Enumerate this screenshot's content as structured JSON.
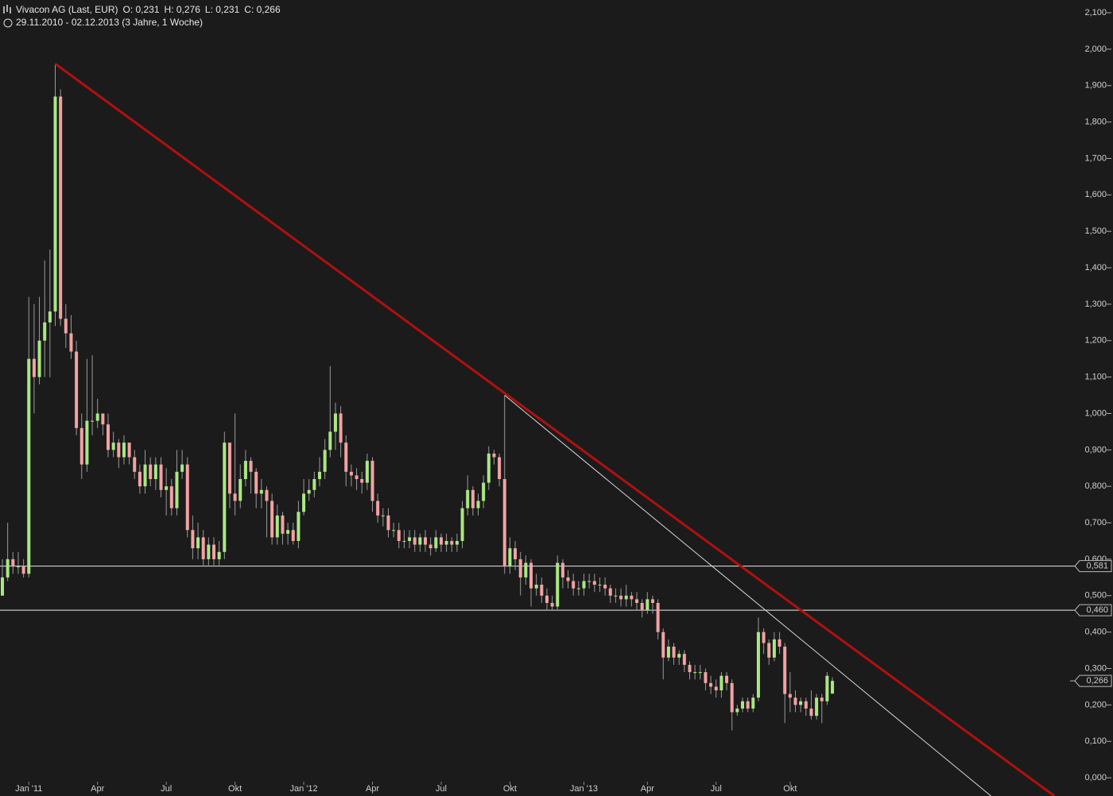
{
  "header": {
    "instrument": "Vivacon AG (Last, EUR)",
    "open": "O: 0,231",
    "high": "H: 0,276",
    "low": "L: 0,231",
    "close": "C: 0,266",
    "period": "29.11.2010 - 02.12.2013 (3 Jahre, 1 Woche)"
  },
  "chart_data": {
    "type": "candlestick",
    "up_color": "#a8e882",
    "down_color": "#f2a2a2",
    "categories": [
      null,
      null,
      null,
      null,
      null,
      "Jan '11",
      null,
      null,
      null,
      null,
      null,
      null,
      null,
      null,
      null,
      null,
      null,
      null,
      "Apr",
      null,
      null,
      null,
      null,
      null,
      null,
      null,
      null,
      null,
      null,
      null,
      null,
      "Jul",
      null,
      null,
      null,
      null,
      null,
      null,
      null,
      null,
      null,
      null,
      null,
      null,
      "Okt",
      null,
      null,
      null,
      null,
      null,
      null,
      null,
      null,
      null,
      null,
      null,
      null,
      "Jan '12",
      null,
      null,
      null,
      null,
      null,
      null,
      null,
      null,
      null,
      null,
      null,
      null,
      "Apr",
      null,
      null,
      null,
      null,
      null,
      null,
      null,
      null,
      null,
      null,
      null,
      null,
      "Jul",
      null,
      null,
      null,
      null,
      null,
      null,
      null,
      null,
      null,
      null,
      null,
      null,
      "Okt",
      null,
      null,
      null,
      null,
      null,
      null,
      null,
      null,
      null,
      null,
      null,
      null,
      null,
      "Jan '13",
      null,
      null,
      null,
      null,
      null,
      null,
      null,
      null,
      null,
      null,
      null,
      "Apr",
      null,
      null,
      null,
      null,
      null,
      null,
      null,
      null,
      null,
      null,
      null,
      null,
      "Jul",
      null,
      null,
      null,
      null,
      null,
      null,
      null,
      null,
      null,
      null,
      null,
      null,
      null,
      "Okt",
      null,
      null,
      null,
      null,
      null,
      null,
      null,
      null
    ],
    "open": [
      0.5,
      0.55,
      0.6,
      0.58,
      0.58,
      0.56,
      1.15,
      1.1,
      1.2,
      1.25,
      1.28,
      1.87,
      1.26,
      1.22,
      1.17,
      0.96,
      0.86,
      0.98,
      0.98,
      1.0,
      0.97,
      0.9,
      0.92,
      0.88,
      0.92,
      0.88,
      0.84,
      0.8,
      0.86,
      0.82,
      0.86,
      0.79,
      0.8,
      0.74,
      0.84,
      0.86,
      0.68,
      0.63,
      0.66,
      0.6,
      0.64,
      0.6,
      0.62,
      0.92,
      0.78,
      0.76,
      0.82,
      0.87,
      0.84,
      0.78,
      0.79,
      0.76,
      0.66,
      0.72,
      0.67,
      0.68,
      0.65,
      0.73,
      0.78,
      0.79,
      0.82,
      0.84,
      0.9,
      0.95,
      1.0,
      0.92,
      0.84,
      0.83,
      0.82,
      0.81,
      0.87,
      0.76,
      0.72,
      0.72,
      0.68,
      0.68,
      0.65,
      0.65,
      0.66,
      0.64,
      0.66,
      0.64,
      0.63,
      0.66,
      0.64,
      0.65,
      0.64,
      0.65,
      0.74,
      0.79,
      0.74,
      0.76,
      0.81,
      0.89,
      0.88,
      0.82,
      0.58,
      0.63,
      0.6,
      0.55,
      0.59,
      0.52,
      0.53,
      0.5,
      0.48,
      0.47,
      0.59,
      0.55,
      0.54,
      0.52,
      0.52,
      0.54,
      0.54,
      0.53,
      0.53,
      0.52,
      0.5,
      0.5,
      0.49,
      0.5,
      0.49,
      0.48,
      0.46,
      0.49,
      0.48,
      0.4,
      0.33,
      0.36,
      0.33,
      0.34,
      0.31,
      0.29,
      0.29,
      0.29,
      0.26,
      0.25,
      0.24,
      0.28,
      0.26,
      0.18,
      0.19,
      0.21,
      0.19,
      0.22,
      0.4,
      0.37,
      0.33,
      0.38,
      0.36,
      0.23,
      0.22,
      0.2,
      0.21,
      0.19,
      0.17,
      0.22,
      0.21,
      0.231
    ],
    "high": [
      0.6,
      0.7,
      0.62,
      0.62,
      0.6,
      1.32,
      1.3,
      1.32,
      1.42,
      1.45,
      1.96,
      1.89,
      1.3,
      1.27,
      1.2,
      1.0,
      1.15,
      1.16,
      1.04,
      1.0,
      1.0,
      0.95,
      0.93,
      0.94,
      0.92,
      0.9,
      0.86,
      0.9,
      0.88,
      0.88,
      0.88,
      0.85,
      0.82,
      0.9,
      0.9,
      0.88,
      0.72,
      0.7,
      0.68,
      0.66,
      0.66,
      0.65,
      0.95,
      0.92,
      1.0,
      0.86,
      0.9,
      0.88,
      0.85,
      0.82,
      0.8,
      0.78,
      0.75,
      0.73,
      0.7,
      0.7,
      0.76,
      0.82,
      0.82,
      0.84,
      0.88,
      0.93,
      1.13,
      1.03,
      1.02,
      0.94,
      0.86,
      0.85,
      0.84,
      0.89,
      0.88,
      0.78,
      0.74,
      0.74,
      0.7,
      0.7,
      0.68,
      0.68,
      0.68,
      0.67,
      0.68,
      0.66,
      0.68,
      0.67,
      0.67,
      0.66,
      0.67,
      0.76,
      0.83,
      0.8,
      0.78,
      0.83,
      0.91,
      0.9,
      0.89,
      1.05,
      0.66,
      0.65,
      0.62,
      0.61,
      0.6,
      0.56,
      0.55,
      0.52,
      0.5,
      0.61,
      0.6,
      0.57,
      0.56,
      0.54,
      0.56,
      0.56,
      0.56,
      0.55,
      0.55,
      0.53,
      0.52,
      0.52,
      0.53,
      0.51,
      0.51,
      0.49,
      0.51,
      0.5,
      0.49,
      0.41,
      0.38,
      0.37,
      0.35,
      0.35,
      0.32,
      0.31,
      0.31,
      0.3,
      0.28,
      0.27,
      0.29,
      0.29,
      0.27,
      0.2,
      0.22,
      0.22,
      0.23,
      0.44,
      0.41,
      0.38,
      0.4,
      0.4,
      0.37,
      0.29,
      0.24,
      0.22,
      0.22,
      0.24,
      0.23,
      0.23,
      0.29,
      0.276
    ],
    "low": [
      0.5,
      0.54,
      0.56,
      0.56,
      0.55,
      0.55,
      1.0,
      1.08,
      1.1,
      1.1,
      1.24,
      1.24,
      1.18,
      1.15,
      0.94,
      0.82,
      0.84,
      0.94,
      0.96,
      0.94,
      0.88,
      0.88,
      0.85,
      0.86,
      0.86,
      0.82,
      0.78,
      0.78,
      0.8,
      0.79,
      0.77,
      0.72,
      0.72,
      0.72,
      0.82,
      0.66,
      0.6,
      0.6,
      0.58,
      0.58,
      0.58,
      0.58,
      0.6,
      0.74,
      0.72,
      0.74,
      0.8,
      0.78,
      0.74,
      0.74,
      0.66,
      0.64,
      0.64,
      0.64,
      0.64,
      0.64,
      0.63,
      0.72,
      0.76,
      0.77,
      0.8,
      0.82,
      0.88,
      0.9,
      0.88,
      0.8,
      0.8,
      0.79,
      0.78,
      0.79,
      0.73,
      0.7,
      0.69,
      0.66,
      0.66,
      0.63,
      0.63,
      0.63,
      0.62,
      0.62,
      0.62,
      0.61,
      0.62,
      0.62,
      0.62,
      0.62,
      0.62,
      0.63,
      0.72,
      0.72,
      0.72,
      0.74,
      0.79,
      0.86,
      0.8,
      0.56,
      0.56,
      0.57,
      0.5,
      0.53,
      0.47,
      0.5,
      0.48,
      0.46,
      0.46,
      0.46,
      0.52,
      0.52,
      0.5,
      0.5,
      0.5,
      0.52,
      0.51,
      0.51,
      0.5,
      0.48,
      0.48,
      0.47,
      0.47,
      0.47,
      0.46,
      0.44,
      0.45,
      0.45,
      0.38,
      0.27,
      0.32,
      0.31,
      0.31,
      0.29,
      0.27,
      0.27,
      0.27,
      0.24,
      0.23,
      0.22,
      0.22,
      0.24,
      0.13,
      0.17,
      0.18,
      0.18,
      0.18,
      0.21,
      0.34,
      0.31,
      0.32,
      0.34,
      0.15,
      0.18,
      0.18,
      0.18,
      0.17,
      0.16,
      0.16,
      0.15,
      0.2,
      0.231
    ],
    "close": [
      0.55,
      0.6,
      0.58,
      0.58,
      0.56,
      1.15,
      1.1,
      1.2,
      1.25,
      1.28,
      1.87,
      1.26,
      1.22,
      1.17,
      0.96,
      0.86,
      0.98,
      0.98,
      1.0,
      0.97,
      0.9,
      0.92,
      0.88,
      0.92,
      0.88,
      0.84,
      0.8,
      0.86,
      0.82,
      0.86,
      0.79,
      0.8,
      0.74,
      0.84,
      0.86,
      0.68,
      0.63,
      0.66,
      0.6,
      0.64,
      0.6,
      0.62,
      0.92,
      0.78,
      0.76,
      0.82,
      0.87,
      0.84,
      0.78,
      0.79,
      0.76,
      0.66,
      0.72,
      0.67,
      0.68,
      0.65,
      0.73,
      0.78,
      0.79,
      0.82,
      0.84,
      0.9,
      0.95,
      1.0,
      0.92,
      0.84,
      0.83,
      0.82,
      0.81,
      0.87,
      0.76,
      0.72,
      0.72,
      0.68,
      0.68,
      0.65,
      0.65,
      0.66,
      0.64,
      0.66,
      0.64,
      0.63,
      0.66,
      0.64,
      0.65,
      0.64,
      0.65,
      0.74,
      0.79,
      0.74,
      0.76,
      0.81,
      0.89,
      0.88,
      0.82,
      0.58,
      0.63,
      0.6,
      0.55,
      0.59,
      0.52,
      0.53,
      0.5,
      0.48,
      0.47,
      0.59,
      0.55,
      0.54,
      0.52,
      0.52,
      0.54,
      0.54,
      0.53,
      0.53,
      0.52,
      0.5,
      0.5,
      0.49,
      0.5,
      0.49,
      0.48,
      0.46,
      0.49,
      0.48,
      0.4,
      0.33,
      0.36,
      0.33,
      0.34,
      0.31,
      0.29,
      0.29,
      0.29,
      0.26,
      0.25,
      0.24,
      0.28,
      0.26,
      0.18,
      0.19,
      0.21,
      0.19,
      0.22,
      0.4,
      0.37,
      0.33,
      0.38,
      0.36,
      0.23,
      0.22,
      0.2,
      0.21,
      0.19,
      0.17,
      0.22,
      0.21,
      0.28,
      0.266
    ],
    "ylim": [
      -0.05,
      2.135
    ],
    "yticks": [
      {
        "value": 0,
        "label": "0,000"
      },
      {
        "value": 0.1,
        "label": "0,100"
      },
      {
        "value": 0.2,
        "label": "0,200"
      },
      {
        "value": 0.3,
        "label": "0,300"
      },
      {
        "value": 0.4,
        "label": "0,400"
      },
      {
        "value": 0.5,
        "label": "0,500"
      },
      {
        "value": 0.6,
        "label": "0,600"
      },
      {
        "value": 0.7,
        "label": "0,700"
      },
      {
        "value": 0.8,
        "label": "0,800"
      },
      {
        "value": 0.9,
        "label": "0,900"
      },
      {
        "value": 1.0,
        "label": "1,000"
      },
      {
        "value": 1.1,
        "label": "1,100"
      },
      {
        "value": 1.2,
        "label": "1,200"
      },
      {
        "value": 1.3,
        "label": "1,300"
      },
      {
        "value": 1.4,
        "label": "1,400"
      },
      {
        "value": 1.5,
        "label": "1,500"
      },
      {
        "value": 1.6,
        "label": "1,600"
      },
      {
        "value": 1.7,
        "label": "1,700"
      },
      {
        "value": 1.8,
        "label": "1,800"
      },
      {
        "value": 1.9,
        "label": "1,900"
      },
      {
        "value": 2.0,
        "label": "2,000"
      },
      {
        "value": 2.1,
        "label": "2,100"
      }
    ],
    "levels": [
      {
        "value": 0.581,
        "label": "0,581"
      },
      {
        "value": 0.46,
        "label": "0,460"
      }
    ],
    "last": {
      "value": 0.266,
      "label": "0,266"
    },
    "trendlines": [
      {
        "color": "#b01010",
        "x": [
          10,
          199
        ],
        "y": [
          1.96,
          -0.05
        ]
      },
      {
        "color": "#d8d8d8",
        "x": [
          95,
          187
        ],
        "y": [
          1.05,
          -0.05
        ]
      }
    ]
  }
}
